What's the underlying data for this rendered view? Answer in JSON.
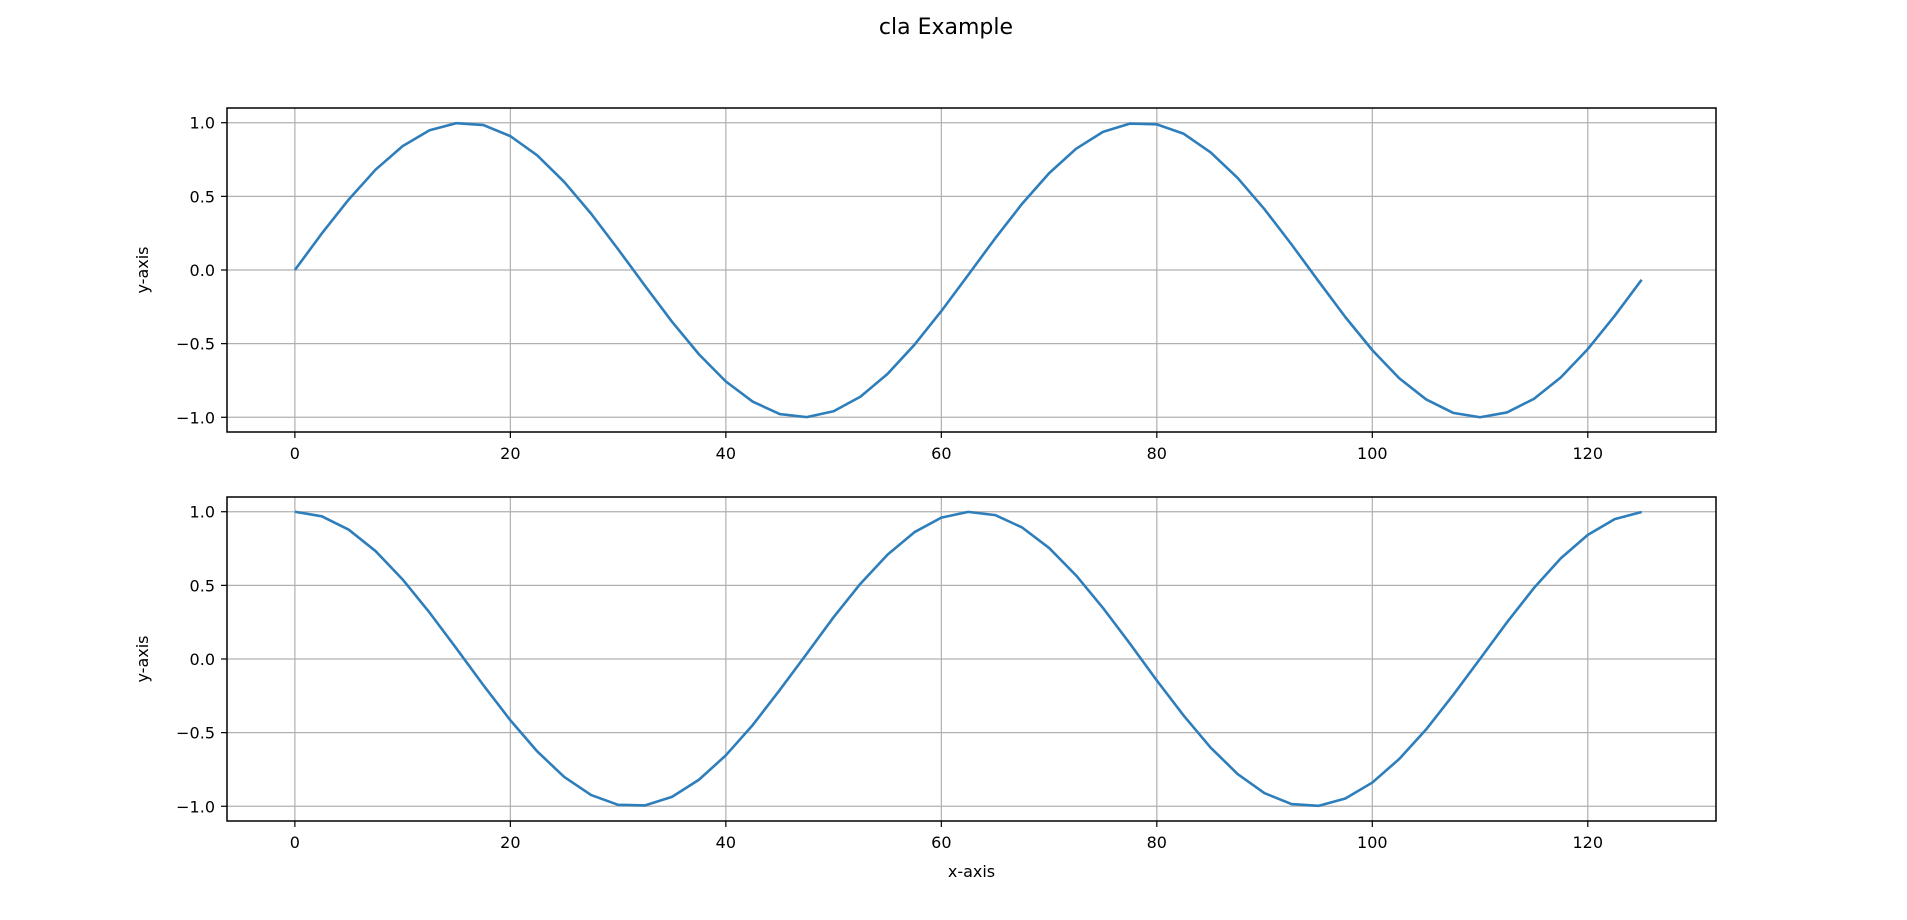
{
  "figure": {
    "title": "cla Example",
    "line_color": "#2e7ebb",
    "grid_color": "#b0b0b0",
    "grid": true
  },
  "chart_data": [
    {
      "type": "line",
      "title": "",
      "xlabel": "",
      "ylabel": "y-axis",
      "xlim": [
        -6.3,
        131.9
      ],
      "ylim": [
        -1.1,
        1.1
      ],
      "xticks": [
        0,
        20,
        40,
        60,
        80,
        100,
        120
      ],
      "xtick_labels": [
        "0",
        "20",
        "40",
        "60",
        "80",
        "100",
        "120"
      ],
      "yticks": [
        1.0,
        0.5,
        0.0,
        -0.5,
        -1.0
      ],
      "ytick_labels": [
        "1.0",
        "0.5",
        "0.0",
        "−0.5",
        "−1.0"
      ],
      "series": [
        {
          "x": [
            0,
            2.5,
            5,
            7.5,
            10,
            12.5,
            15,
            17.5,
            20,
            22.5,
            25,
            27.5,
            30,
            32.5,
            35,
            37.5,
            40,
            42.5,
            45,
            47.5,
            50,
            52.5,
            55,
            57.5,
            60,
            62.5,
            65,
            67.5,
            70,
            72.5,
            75,
            77.5,
            80,
            82.5,
            85,
            87.5,
            90,
            92.5,
            95,
            97.5,
            100,
            102.5,
            105,
            107.5,
            110,
            112.5,
            115,
            117.5,
            120,
            122.5,
            125
          ],
          "y": [
            0.0,
            0.248,
            0.479,
            0.682,
            0.841,
            0.949,
            0.997,
            0.984,
            0.909,
            0.778,
            0.598,
            0.382,
            0.141,
            -0.108,
            -0.351,
            -0.572,
            -0.757,
            -0.894,
            -0.978,
            -0.999,
            -0.959,
            -0.86,
            -0.706,
            -0.508,
            -0.279,
            -0.033,
            0.215,
            0.45,
            0.657,
            0.823,
            0.938,
            0.994,
            0.989,
            0.925,
            0.798,
            0.625,
            0.412,
            0.174,
            -0.075,
            -0.32,
            -0.544,
            -0.735,
            -0.879,
            -0.97,
            -1.0,
            -0.967,
            -0.875,
            -0.729,
            -0.537,
            -0.311,
            -0.066
          ]
        }
      ]
    },
    {
      "type": "line",
      "title": "",
      "xlabel": "x-axis",
      "ylabel": "y-axis",
      "xlim": [
        -6.3,
        131.9
      ],
      "ylim": [
        -1.1,
        1.1
      ],
      "xticks": [
        0,
        20,
        40,
        60,
        80,
        100,
        120
      ],
      "xtick_labels": [
        "0",
        "20",
        "40",
        "60",
        "80",
        "100",
        "120"
      ],
      "yticks": [
        1.0,
        0.5,
        0.0,
        -0.5,
        -1.0
      ],
      "ytick_labels": [
        "1.0",
        "0.5",
        "0.0",
        "−0.5",
        "−1.0"
      ],
      "series": [
        {
          "x": [
            0,
            2.5,
            5,
            7.5,
            10,
            12.5,
            15,
            17.5,
            20,
            22.5,
            25,
            27.5,
            30,
            32.5,
            35,
            37.5,
            40,
            42.5,
            45,
            47.5,
            50,
            52.5,
            55,
            57.5,
            60,
            62.5,
            65,
            67.5,
            70,
            72.5,
            75,
            77.5,
            80,
            82.5,
            85,
            87.5,
            90,
            92.5,
            95,
            97.5,
            100,
            102.5,
            105,
            107.5,
            110,
            112.5,
            115,
            117.5,
            120,
            122.5,
            125
          ],
          "y": [
            1.0,
            0.969,
            0.878,
            0.732,
            0.54,
            0.315,
            0.071,
            -0.178,
            -0.416,
            -0.628,
            -0.801,
            -0.924,
            -0.99,
            -0.994,
            -0.936,
            -0.82,
            -0.654,
            -0.448,
            -0.211,
            0.035,
            0.284,
            0.512,
            0.708,
            0.861,
            0.96,
            0.999,
            0.977,
            0.893,
            0.754,
            0.568,
            0.347,
            0.105,
            -0.146,
            -0.385,
            -0.602,
            -0.781,
            -0.911,
            -0.985,
            -0.997,
            -0.947,
            -0.839,
            -0.679,
            -0.478,
            -0.245,
            0.001,
            0.249,
            0.482,
            0.684,
            0.843,
            0.95,
            0.998
          ]
        }
      ]
    }
  ]
}
